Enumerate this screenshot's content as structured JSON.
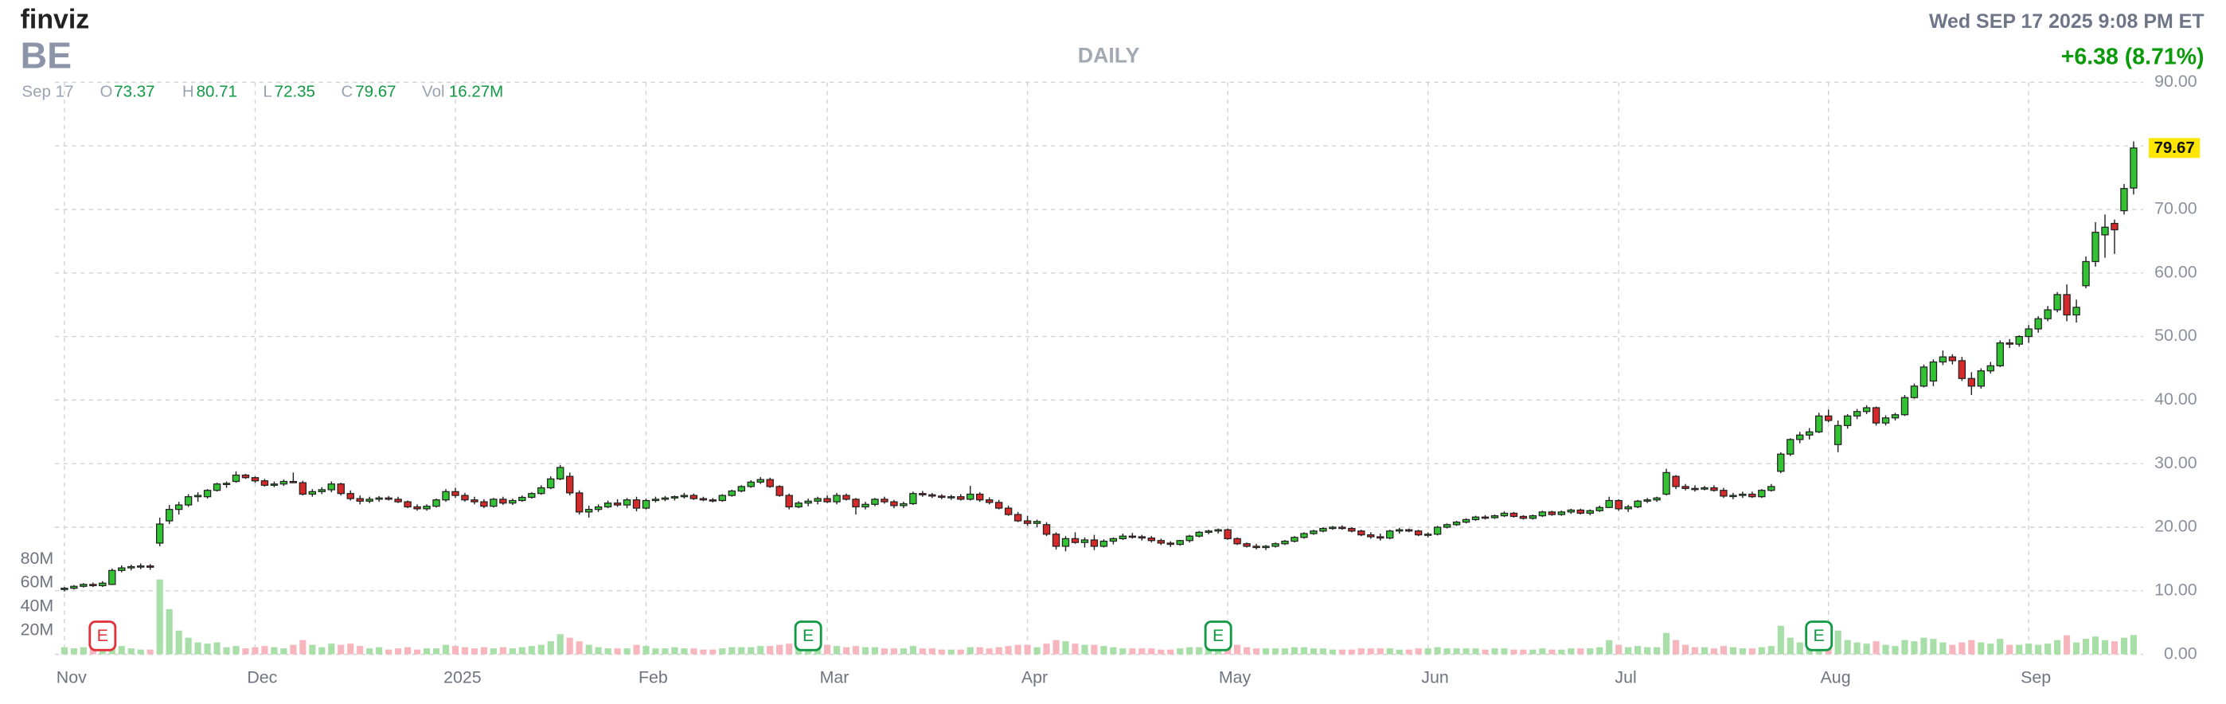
{
  "header": {
    "logo": "finviz",
    "ticker": "BE",
    "datetime": "Wed SEP 17 2025 9:08 PM ET",
    "change": "+6.38 (8.71%)"
  },
  "quote": {
    "date": "Sep 17",
    "o": "O",
    "h": "H",
    "l": "L",
    "c": "C",
    "vol": "Vol",
    "vol_value": "16.27M"
  },
  "chart_data": {
    "type": "candlestick",
    "title": "DAILY",
    "up_color": "#33c233",
    "down_color": "#d62a2a",
    "volume_up_color": "#a8dea8",
    "volume_down_color": "#f7b6be",
    "grid": true,
    "xlim": [
      -1,
      218
    ],
    "xticks": [
      {
        "value": 0,
        "label": "Nov"
      },
      {
        "value": 20,
        "label": "Dec"
      },
      {
        "value": 41,
        "label": "2025"
      },
      {
        "value": 61,
        "label": "Feb"
      },
      {
        "value": 80,
        "label": "Mar"
      },
      {
        "value": 101,
        "label": "Apr"
      },
      {
        "value": 122,
        "label": "May"
      },
      {
        "value": 143,
        "label": "Jun"
      },
      {
        "value": 163,
        "label": "Jul"
      },
      {
        "value": 185,
        "label": "Aug"
      },
      {
        "value": 206,
        "label": "Sep"
      }
    ],
    "ylim": [
      0,
      90
    ],
    "yticks": [
      {
        "value": 0,
        "label": "0.00"
      },
      {
        "value": 10,
        "label": "10.00"
      },
      {
        "value": 20,
        "label": "20.00"
      },
      {
        "value": 30,
        "label": "30.00"
      },
      {
        "value": 40,
        "label": "40.00"
      },
      {
        "value": 50,
        "label": "50.00"
      },
      {
        "value": 60,
        "label": "60.00"
      },
      {
        "value": 70,
        "label": "70.00"
      },
      {
        "value": 80,
        "label": "80.00"
      },
      {
        "value": 90,
        "label": "90.00"
      }
    ],
    "y2lim": [
      0,
      80
    ],
    "y2ticks": [
      {
        "value": 20,
        "label": "20M"
      },
      {
        "value": 40,
        "label": "40M"
      },
      {
        "value": 60,
        "label": "60M"
      },
      {
        "value": 80,
        "label": "80M"
      }
    ],
    "last_price_color": "#ffe600",
    "earnings": [
      {
        "x": 4,
        "label": "E",
        "color": "#e0303a"
      },
      {
        "x": 78,
        "label": "E",
        "color": "#119944"
      },
      {
        "x": 121,
        "label": "E",
        "color": "#119944"
      },
      {
        "x": 184,
        "label": "E",
        "color": "#119944"
      }
    ],
    "open": [
      10.2,
      10.4,
      10.7,
      11.0,
      10.8,
      11.0,
      13.2,
      13.6,
      13.8,
      13.9,
      17.5,
      21.0,
      22.8,
      23.5,
      24.8,
      24.8,
      25.8,
      26.8,
      27.2,
      28.2,
      27.8,
      27.3,
      26.6,
      26.8,
      27.2,
      27.0,
      25.2,
      25.6,
      25.9,
      26.8,
      25.3,
      24.5,
      24.1,
      24.4,
      24.6,
      24.4,
      24.0,
      23.2,
      22.9,
      23.3,
      24.3,
      25.6,
      25.0,
      24.3,
      24.0,
      23.3,
      24.4,
      23.8,
      24.2,
      24.7,
      25.3,
      26.2,
      27.6,
      28.0,
      25.4,
      22.4,
      22.8,
      23.2,
      23.8,
      23.5,
      24.3,
      23.0,
      24.2,
      24.4,
      24.6,
      24.8,
      25.0,
      24.5,
      24.3,
      24.2,
      25.0,
      25.7,
      26.4,
      27.1,
      27.5,
      26.4,
      25.0,
      23.2,
      23.8,
      24.1,
      24.5,
      24.0,
      25.0,
      24.4,
      23.2,
      23.6,
      24.4,
      24.0,
      23.4,
      23.7,
      25.3,
      25.1,
      24.9,
      24.7,
      24.8,
      24.4,
      25.2,
      24.3,
      23.9,
      23.0,
      22.0,
      21.0,
      20.6,
      20.4,
      18.9,
      17.0,
      18.2,
      17.6,
      18.0,
      17.0,
      17.8,
      18.2,
      18.6,
      18.5,
      18.3,
      17.9,
      17.5,
      17.3,
      17.9,
      18.6,
      19.2,
      19.4,
      19.6,
      18.2,
      17.4,
      17.0,
      16.8,
      17.0,
      17.4,
      17.8,
      18.4,
      19.0,
      19.4,
      19.8,
      20.0,
      19.8,
      19.4,
      18.8,
      18.5,
      18.3,
      19.4,
      19.6,
      19.4,
      18.8,
      18.9,
      20.0,
      20.4,
      20.8,
      21.2,
      21.6,
      21.5,
      21.8,
      22.2,
      21.7,
      21.4,
      21.8,
      22.4,
      22.0,
      22.4,
      22.7,
      22.2,
      22.6,
      23.1,
      24.2,
      22.9,
      23.2,
      24.1,
      24.3,
      25.2,
      28.0,
      26.4,
      26.1,
      26.0,
      26.2,
      25.8,
      24.9,
      25.0,
      25.2,
      24.8,
      25.8,
      28.8,
      31.5,
      33.8,
      34.5,
      35.0,
      37.5,
      33.0,
      36.0,
      37.5,
      38.2,
      38.8,
      36.4,
      37.2,
      37.7,
      40.4,
      42.2,
      43.0,
      46.0,
      46.8,
      46.2,
      43.4,
      42.2,
      44.6,
      45.4,
      49.0,
      48.8,
      50.0,
      51.2,
      52.8,
      54.2,
      56.6,
      53.4,
      58.0,
      61.8,
      66.0,
      67.8,
      69.8,
      73.37
    ],
    "high": [
      10.6,
      10.9,
      11.2,
      11.3,
      11.5,
      13.5,
      14.0,
      14.1,
      14.3,
      14.2,
      21.5,
      23.5,
      24.0,
      25.2,
      25.5,
      26.0,
      27.0,
      27.2,
      28.8,
      28.4,
      28.0,
      27.6,
      27.2,
      27.5,
      28.6,
      27.3,
      26.0,
      26.3,
      27.2,
      27.0,
      25.8,
      25.0,
      24.8,
      24.9,
      24.9,
      24.8,
      24.2,
      23.6,
      23.6,
      24.5,
      26.0,
      26.2,
      25.4,
      24.8,
      24.4,
      24.6,
      24.8,
      24.5,
      25.0,
      25.5,
      26.6,
      28.0,
      29.8,
      28.6,
      25.8,
      23.4,
      23.6,
      24.2,
      24.4,
      24.6,
      24.8,
      24.5,
      24.8,
      24.9,
      25.0,
      25.4,
      25.3,
      24.8,
      24.6,
      25.2,
      25.9,
      26.6,
      27.4,
      27.9,
      27.8,
      26.6,
      25.3,
      24.1,
      24.5,
      24.8,
      25.0,
      25.4,
      25.3,
      24.6,
      24.0,
      24.6,
      24.8,
      24.3,
      24.0,
      25.6,
      25.7,
      25.4,
      25.2,
      25.1,
      25.2,
      26.5,
      25.5,
      24.7,
      24.3,
      23.4,
      22.4,
      21.8,
      21.2,
      20.8,
      19.2,
      18.6,
      19.2,
      18.4,
      18.8,
      18.1,
      18.4,
      19.0,
      19.1,
      18.8,
      18.6,
      18.2,
      17.8,
      18.0,
      18.8,
      19.4,
      19.6,
      19.8,
      19.8,
      18.4,
      17.6,
      17.4,
      17.2,
      17.6,
      18.0,
      18.6,
      19.2,
      19.6,
      20.0,
      20.2,
      20.3,
      20.0,
      19.6,
      19.2,
      19.0,
      19.6,
      19.9,
      19.8,
      19.6,
      19.2,
      20.2,
      20.6,
      21.0,
      21.4,
      21.8,
      21.9,
      22.0,
      22.5,
      22.4,
      21.9,
      22.0,
      22.6,
      22.6,
      22.6,
      22.9,
      22.9,
      22.8,
      23.4,
      24.8,
      24.4,
      23.5,
      24.3,
      24.6,
      24.8,
      29.2,
      28.2,
      26.8,
      26.6,
      26.5,
      26.6,
      26.2,
      25.4,
      25.6,
      25.6,
      26.0,
      26.8,
      31.8,
      34.0,
      35.0,
      35.6,
      38.0,
      38.5,
      36.8,
      37.8,
      38.6,
      39.2,
      39.0,
      37.6,
      38.0,
      40.8,
      42.6,
      45.6,
      46.4,
      47.8,
      47.2,
      46.8,
      44.4,
      45.0,
      46.0,
      49.4,
      49.6,
      50.2,
      51.8,
      53.2,
      54.8,
      57.0,
      58.2,
      55.8,
      62.6,
      68.0,
      69.2,
      68.4,
      74.0,
      80.71
    ],
    "low": [
      9.9,
      10.2,
      10.5,
      10.6,
      10.6,
      10.9,
      12.9,
      13.2,
      13.4,
      13.3,
      17.0,
      20.5,
      22.0,
      23.2,
      24.0,
      24.5,
      25.6,
      26.2,
      27.0,
      27.6,
      27.0,
      26.4,
      26.3,
      26.5,
      27.0,
      25.0,
      24.8,
      25.2,
      25.5,
      25.0,
      24.2,
      23.6,
      23.8,
      24.0,
      24.2,
      23.8,
      23.0,
      22.6,
      22.6,
      23.1,
      24.0,
      24.6,
      24.0,
      23.6,
      23.0,
      23.1,
      23.5,
      23.5,
      24.0,
      24.5,
      25.1,
      26.0,
      27.4,
      25.0,
      22.0,
      21.5,
      22.4,
      23.0,
      23.2,
      23.0,
      22.5,
      22.8,
      23.9,
      24.1,
      24.2,
      24.5,
      24.3,
      24.1,
      23.9,
      24.0,
      24.8,
      25.5,
      26.2,
      26.8,
      26.2,
      24.8,
      22.8,
      23.0,
      23.3,
      23.6,
      23.8,
      23.6,
      24.2,
      22.0,
      22.8,
      23.3,
      23.7,
      23.0,
      23.0,
      23.5,
      24.8,
      24.6,
      24.4,
      24.3,
      24.2,
      24.2,
      24.0,
      23.6,
      22.8,
      21.8,
      20.8,
      20.2,
      20.0,
      18.6,
      16.5,
      16.2,
      17.4,
      16.8,
      16.4,
      16.8,
      17.3,
      18.0,
      18.2,
      17.9,
      17.6,
      17.2,
      16.9,
      17.1,
      17.6,
      18.4,
      18.9,
      19.0,
      18.0,
      17.2,
      16.8,
      16.5,
      16.4,
      16.8,
      17.2,
      17.6,
      18.2,
      18.8,
      19.2,
      19.6,
      19.6,
      19.2,
      18.6,
      18.2,
      17.9,
      18.1,
      19.0,
      19.2,
      18.6,
      18.4,
      18.7,
      19.8,
      20.2,
      20.6,
      21.0,
      21.2,
      21.3,
      21.6,
      21.5,
      21.2,
      21.2,
      21.6,
      21.8,
      21.8,
      22.1,
      22.0,
      21.9,
      22.4,
      23.0,
      22.6,
      22.4,
      23.0,
      23.8,
      24.0,
      25.0,
      26.0,
      25.8,
      25.6,
      25.8,
      25.6,
      24.6,
      24.4,
      24.6,
      24.6,
      24.6,
      25.6,
      28.5,
      31.2,
      33.2,
      33.8,
      34.8,
      36.5,
      31.8,
      35.5,
      37.0,
      37.8,
      36.0,
      36.0,
      36.8,
      37.5,
      40.2,
      42.0,
      42.2,
      45.5,
      45.6,
      43.0,
      40.8,
      41.8,
      44.2,
      45.2,
      48.2,
      48.4,
      49.0,
      50.6,
      52.4,
      53.8,
      52.4,
      52.2,
      57.6,
      61.0,
      62.4,
      63.0,
      69.2,
      72.35
    ],
    "close": [
      10.4,
      10.7,
      11.0,
      10.8,
      11.2,
      13.2,
      13.6,
      13.8,
      13.9,
      13.7,
      20.5,
      22.8,
      23.5,
      24.8,
      25.0,
      25.8,
      26.8,
      26.9,
      28.2,
      27.8,
      27.3,
      26.6,
      26.8,
      27.2,
      27.0,
      25.2,
      25.6,
      25.9,
      26.8,
      25.3,
      24.5,
      24.1,
      24.4,
      24.6,
      24.4,
      24.0,
      23.2,
      22.9,
      23.3,
      24.3,
      25.6,
      25.0,
      24.3,
      24.0,
      23.3,
      24.4,
      23.8,
      24.2,
      24.7,
      25.3,
      26.2,
      27.6,
      29.4,
      25.4,
      22.4,
      22.8,
      23.2,
      23.8,
      23.5,
      24.3,
      23.0,
      24.2,
      24.4,
      24.6,
      24.8,
      25.0,
      24.5,
      24.3,
      24.2,
      25.0,
      25.7,
      26.4,
      27.1,
      27.5,
      26.4,
      25.0,
      23.2,
      23.8,
      24.1,
      24.5,
      24.0,
      25.0,
      24.4,
      23.2,
      23.6,
      24.4,
      24.0,
      23.4,
      23.7,
      25.3,
      25.1,
      24.9,
      24.7,
      24.8,
      24.4,
      25.2,
      24.3,
      23.9,
      23.0,
      22.0,
      21.0,
      20.6,
      20.9,
      18.9,
      17.0,
      18.2,
      17.6,
      18.0,
      17.0,
      17.8,
      18.2,
      18.6,
      18.5,
      18.3,
      17.9,
      17.5,
      17.3,
      17.9,
      18.6,
      19.2,
      19.4,
      19.6,
      18.2,
      17.4,
      17.0,
      16.8,
      17.0,
      17.4,
      17.8,
      18.4,
      19.0,
      19.4,
      19.8,
      20.0,
      19.8,
      19.4,
      18.8,
      18.5,
      18.3,
      19.4,
      19.6,
      19.4,
      18.8,
      18.9,
      20.0,
      20.4,
      20.8,
      21.2,
      21.6,
      21.5,
      21.8,
      22.2,
      21.7,
      21.4,
      21.8,
      22.4,
      22.0,
      22.4,
      22.7,
      22.2,
      22.6,
      23.1,
      24.2,
      22.9,
      23.2,
      24.1,
      24.3,
      24.6,
      28.6,
      26.4,
      26.1,
      26.0,
      26.2,
      25.8,
      24.9,
      25.0,
      25.2,
      24.8,
      25.8,
      26.4,
      31.5,
      33.8,
      34.5,
      35.0,
      37.5,
      36.8,
      36.0,
      37.5,
      38.2,
      38.8,
      36.4,
      37.2,
      37.7,
      40.4,
      42.2,
      45.2,
      46.0,
      46.8,
      46.2,
      43.4,
      42.2,
      44.6,
      45.4,
      49.0,
      48.8,
      50.0,
      51.2,
      52.8,
      54.2,
      56.6,
      53.4,
      54.6,
      61.8,
      66.4,
      67.2,
      66.8,
      73.29,
      79.67
    ],
    "volume": [
      6,
      5,
      6,
      5,
      9,
      14,
      7,
      5,
      4,
      4,
      63,
      38,
      20,
      14,
      10,
      9,
      10,
      6,
      7,
      5,
      6,
      7,
      6,
      5,
      8,
      12,
      8,
      6,
      9,
      8,
      9,
      7,
      5,
      6,
      4,
      5,
      6,
      4,
      5,
      5,
      8,
      7,
      6,
      5,
      6,
      5,
      6,
      5,
      6,
      7,
      8,
      11,
      17,
      14,
      11,
      8,
      6,
      5,
      5,
      5,
      8,
      7,
      5,
      5,
      6,
      5,
      5,
      4,
      4,
      5,
      6,
      6,
      6,
      7,
      7,
      8,
      9,
      7,
      10,
      8,
      8,
      7,
      6,
      7,
      6,
      6,
      5,
      5,
      5,
      7,
      5,
      5,
      4,
      4,
      4,
      6,
      6,
      5,
      6,
      7,
      8,
      8,
      6,
      9,
      12,
      11,
      9,
      8,
      8,
      7,
      6,
      5,
      5,
      5,
      5,
      4,
      4,
      5,
      6,
      6,
      5,
      5,
      14,
      8,
      6,
      5,
      5,
      5,
      5,
      6,
      6,
      5,
      5,
      4,
      4,
      4,
      5,
      5,
      5,
      5,
      4,
      4,
      5,
      5,
      6,
      5,
      5,
      5,
      5,
      4,
      5,
      5,
      4,
      4,
      4,
      5,
      4,
      4,
      5,
      5,
      5,
      6,
      12,
      8,
      6,
      7,
      6,
      6,
      18,
      12,
      8,
      6,
      6,
      5,
      7,
      6,
      5,
      5,
      6,
      7,
      24,
      14,
      10,
      9,
      15,
      11,
      20,
      12,
      10,
      9,
      11,
      8,
      7,
      12,
      11,
      14,
      13,
      10,
      8,
      10,
      12,
      10,
      9,
      13,
      8,
      8,
      9,
      8,
      9,
      12,
      16,
      10,
      13,
      15,
      12,
      11,
      14,
      16.27
    ]
  }
}
